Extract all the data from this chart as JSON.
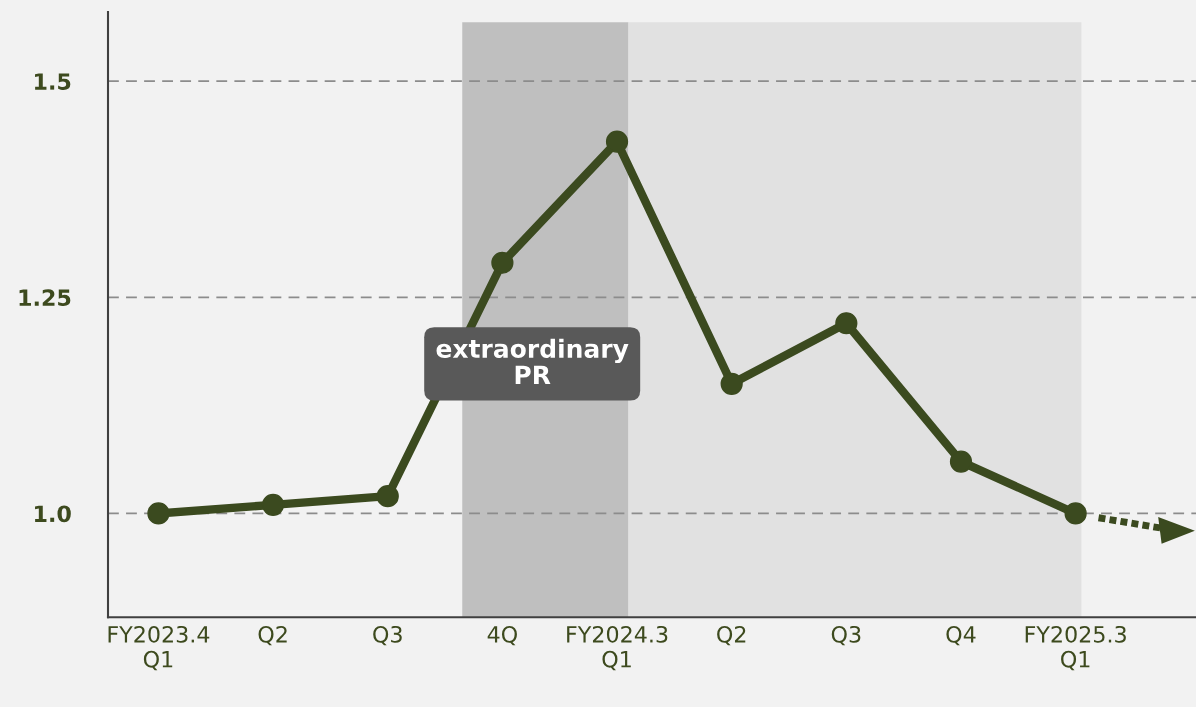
{
  "chart_data": {
    "type": "line",
    "categories": [
      "FY2023.4\nQ1",
      "Q2",
      "Q3",
      "4Q",
      "FY2024.3\nQ1",
      "Q2",
      "Q3",
      "Q4",
      "FY2025.3\nQ1"
    ],
    "series": [
      {
        "color": "#3b4a1f",
        "values": [
          1.0,
          1.01,
          1.02,
          1.29,
          1.43,
          1.15,
          1.22,
          1.06,
          1.0
        ]
      }
    ],
    "ylim": [
      0.88,
      1.58
    ],
    "yticks": [
      {
        "value": 1.0,
        "label": "1.0"
      },
      1.25,
      1.5
    ],
    "grid": "y",
    "marker": "circle",
    "line_style": "solid",
    "annotations": [
      "extraordinary\nPR"
    ]
  }
}
